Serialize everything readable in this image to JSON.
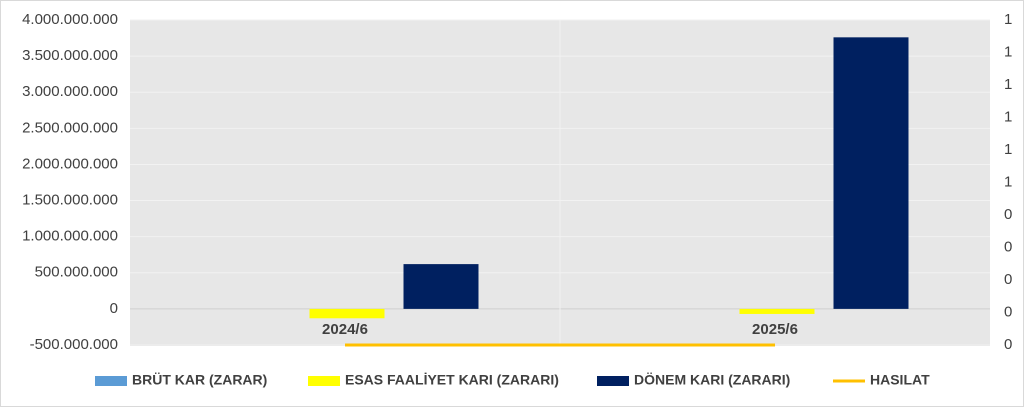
{
  "chart_data": {
    "type": "bar",
    "categories": [
      "2024/6",
      "2025/6"
    ],
    "series": [
      {
        "name": "BRÜT KAR (ZARAR)",
        "color": "#5b9bd5",
        "values": [
          0,
          0
        ]
      },
      {
        "name": "ESAS FAALİYET KARI (ZARARI)",
        "color": "#ffff00",
        "values": [
          -130000000,
          -70000000
        ]
      },
      {
        "name": "DÖNEM KARI (ZARARI)",
        "color": "#002060",
        "values": [
          620000000,
          3760000000
        ]
      },
      {
        "name": "HASILAT",
        "color": "#ffc000",
        "values": [
          0,
          0
        ],
        "axis": "y2",
        "type": "line"
      }
    ],
    "ylim": [
      -500000000,
      4000000000
    ],
    "yticks": [
      {
        "value": -500000000,
        "label": "-500.000.000"
      },
      0,
      {
        "value": 500000000,
        "label": "500.000.000"
      },
      {
        "value": 1000000000,
        "label": "1.000.000.000"
      },
      {
        "value": 1500000000,
        "label": "1.500.000.000"
      },
      {
        "value": 2000000000,
        "label": "2.000.000.000"
      },
      {
        "value": 2500000000,
        "label": "2.500.000.000"
      },
      {
        "value": 3000000000,
        "label": "3.000.000.000"
      },
      {
        "value": 3500000000,
        "label": "3.500.000.000"
      },
      {
        "value": 4000000000,
        "label": "4.000.000.000"
      }
    ],
    "y2lim": [
      0,
      1
    ],
    "y2ticks": [
      0,
      {
        "value": 0.1,
        "label": "0"
      },
      {
        "value": 0.2,
        "label": "0"
      },
      {
        "value": 0.3,
        "label": "0"
      },
      {
        "value": 0.4,
        "label": "0"
      },
      {
        "value": 0.5,
        "label": "1"
      },
      {
        "value": 0.6,
        "label": "1"
      },
      {
        "value": 0.7,
        "label": "1"
      },
      {
        "value": 0.8,
        "label": "1"
      },
      {
        "value": 0.9,
        "label": "1"
      },
      1
    ],
    "grid": true,
    "legend": "bottom"
  }
}
